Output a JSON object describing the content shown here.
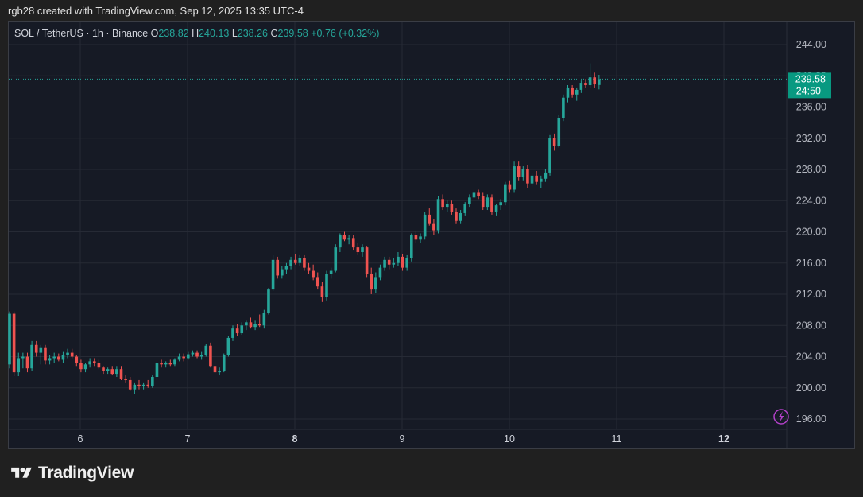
{
  "header": {
    "attribution": "rgb28 created with TradingView.com, Sep 12, 2025 13:35 UTC-4"
  },
  "legend": {
    "symbol": "SOL / TetherUS · 1h · Binance",
    "o_label": "O",
    "o_value": "238.82",
    "h_label": "H",
    "h_value": "240.13",
    "l_label": "L",
    "l_value": "238.26",
    "c_label": "C",
    "c_value": "239.58",
    "change": "+0.76 (+0.32%)"
  },
  "price_tag": {
    "price": "239.58",
    "countdown": "24:50"
  },
  "footer": {
    "logo_text": "TradingView"
  },
  "colors": {
    "up": "#26a69a",
    "down": "#ef5350",
    "background": "#161a25",
    "grid": "#262a35",
    "tag": "#089981",
    "accent": "#b341c9"
  },
  "chart_data": {
    "type": "candlestick",
    "title": "SOL / TetherUS · 1h · Binance",
    "ylim": [
      192.5,
      247.5
    ],
    "y_ticks": [
      "244.00",
      "240.00",
      "236.00",
      "232.00",
      "228.00",
      "224.00",
      "220.00",
      "216.00",
      "212.00",
      "208.00",
      "204.00",
      "200.00",
      "196.00"
    ],
    "y_tick_values": [
      244,
      240,
      236,
      232,
      228,
      224,
      220,
      216,
      212,
      208,
      204,
      200,
      196
    ],
    "x_ticks": [
      "6",
      "7",
      "8",
      "9",
      "10",
      "11",
      "12"
    ],
    "x_ticks_bold": [
      "8",
      "12"
    ],
    "grid": true,
    "last_price": 239.58,
    "candles": [
      [
        203.0,
        209.8,
        202.5,
        209.5
      ],
      [
        209.5,
        209.8,
        201.5,
        202.0
      ],
      [
        202.0,
        204.5,
        201.5,
        203.8
      ],
      [
        203.8,
        204.5,
        202.5,
        204.0
      ],
      [
        204.0,
        204.5,
        202.0,
        202.5
      ],
      [
        202.5,
        206.0,
        202.2,
        205.5
      ],
      [
        205.5,
        206.0,
        204.0,
        204.5
      ],
      [
        204.5,
        205.5,
        203.0,
        205.2
      ],
      [
        205.2,
        205.5,
        203.0,
        203.5
      ],
      [
        203.5,
        204.2,
        203.0,
        203.8
      ],
      [
        203.8,
        204.5,
        203.2,
        204.0
      ],
      [
        204.0,
        204.4,
        203.4,
        203.6
      ],
      [
        203.6,
        204.6,
        203.2,
        204.2
      ],
      [
        204.2,
        205.0,
        203.8,
        204.5
      ],
      [
        204.5,
        205.0,
        203.8,
        204.0
      ],
      [
        204.0,
        204.2,
        202.8,
        203.2
      ],
      [
        203.2,
        203.6,
        202.0,
        202.4
      ],
      [
        202.4,
        203.2,
        202.0,
        203.0
      ],
      [
        203.0,
        203.8,
        202.6,
        203.4
      ],
      [
        203.4,
        203.8,
        202.8,
        203.2
      ],
      [
        203.2,
        203.6,
        202.4,
        202.6
      ],
      [
        202.6,
        202.8,
        201.8,
        202.2
      ],
      [
        202.2,
        202.6,
        201.8,
        202.4
      ],
      [
        202.4,
        202.8,
        201.6,
        201.8
      ],
      [
        201.8,
        202.8,
        201.4,
        202.4
      ],
      [
        202.4,
        202.8,
        201.0,
        201.2
      ],
      [
        201.2,
        201.6,
        200.6,
        201.0
      ],
      [
        201.0,
        201.4,
        199.6,
        199.8
      ],
      [
        199.8,
        200.6,
        199.2,
        200.4
      ],
      [
        200.4,
        201.0,
        199.8,
        200.2
      ],
      [
        200.2,
        200.6,
        199.8,
        200.4
      ],
      [
        200.4,
        201.0,
        200.0,
        200.2
      ],
      [
        200.2,
        201.6,
        200.0,
        201.4
      ],
      [
        201.4,
        203.4,
        201.0,
        203.2
      ],
      [
        203.2,
        203.6,
        202.6,
        203.0
      ],
      [
        203.0,
        203.4,
        202.6,
        203.2
      ],
      [
        203.2,
        203.6,
        202.8,
        203.0
      ],
      [
        203.0,
        203.8,
        202.8,
        203.6
      ],
      [
        203.6,
        204.4,
        203.4,
        204.0
      ],
      [
        204.0,
        204.4,
        203.4,
        203.8
      ],
      [
        203.8,
        204.6,
        203.6,
        204.3
      ],
      [
        204.3,
        204.8,
        204.0,
        204.5
      ],
      [
        204.5,
        204.8,
        203.8,
        204.0
      ],
      [
        204.0,
        204.6,
        203.6,
        204.2
      ],
      [
        204.2,
        205.6,
        204.0,
        205.4
      ],
      [
        205.4,
        205.8,
        202.6,
        202.8
      ],
      [
        202.8,
        203.4,
        201.8,
        202.0
      ],
      [
        202.0,
        202.6,
        201.6,
        202.2
      ],
      [
        202.2,
        204.4,
        202.0,
        204.2
      ],
      [
        204.2,
        206.6,
        204.0,
        206.4
      ],
      [
        206.4,
        208.0,
        206.0,
        207.6
      ],
      [
        207.6,
        208.2,
        206.6,
        207.0
      ],
      [
        207.0,
        208.4,
        206.8,
        208.0
      ],
      [
        208.0,
        208.6,
        207.4,
        208.4
      ],
      [
        208.4,
        209.0,
        207.6,
        207.8
      ],
      [
        207.8,
        208.6,
        207.4,
        208.2
      ],
      [
        208.2,
        209.4,
        207.8,
        208.0
      ],
      [
        208.0,
        210.0,
        207.6,
        209.6
      ],
      [
        209.6,
        212.8,
        209.4,
        212.6
      ],
      [
        212.6,
        217.0,
        212.4,
        216.4
      ],
      [
        216.4,
        216.8,
        214.0,
        214.4
      ],
      [
        214.4,
        215.6,
        214.0,
        215.2
      ],
      [
        215.2,
        216.0,
        214.6,
        215.6
      ],
      [
        215.6,
        216.8,
        215.2,
        216.4
      ],
      [
        216.4,
        217.2,
        215.8,
        216.0
      ],
      [
        216.0,
        217.0,
        215.6,
        216.6
      ],
      [
        216.6,
        217.0,
        215.0,
        215.4
      ],
      [
        215.4,
        216.0,
        214.6,
        215.0
      ],
      [
        215.0,
        215.8,
        213.8,
        214.2
      ],
      [
        214.2,
        214.8,
        212.6,
        213.0
      ],
      [
        213.0,
        213.6,
        211.0,
        211.6
      ],
      [
        211.6,
        215.0,
        211.2,
        214.6
      ],
      [
        214.6,
        215.4,
        214.0,
        215.0
      ],
      [
        215.0,
        218.4,
        214.8,
        218.0
      ],
      [
        218.0,
        219.8,
        217.4,
        219.6
      ],
      [
        219.6,
        220.0,
        218.8,
        219.0
      ],
      [
        219.0,
        219.6,
        218.4,
        219.2
      ],
      [
        219.2,
        219.6,
        217.6,
        218.0
      ],
      [
        218.0,
        218.6,
        217.0,
        217.4
      ],
      [
        217.4,
        218.4,
        216.8,
        218.0
      ],
      [
        218.0,
        218.2,
        214.2,
        214.6
      ],
      [
        214.6,
        215.4,
        212.0,
        212.6
      ],
      [
        212.6,
        214.8,
        212.2,
        214.2
      ],
      [
        214.2,
        215.8,
        213.8,
        215.4
      ],
      [
        215.4,
        216.8,
        215.0,
        216.4
      ],
      [
        216.4,
        216.8,
        215.2,
        215.8
      ],
      [
        215.8,
        216.6,
        215.4,
        216.0
      ],
      [
        216.0,
        217.4,
        215.6,
        216.8
      ],
      [
        216.8,
        217.2,
        215.0,
        215.4
      ],
      [
        215.4,
        217.0,
        215.0,
        216.6
      ],
      [
        216.6,
        219.8,
        216.2,
        219.6
      ],
      [
        219.6,
        220.0,
        218.6,
        219.0
      ],
      [
        219.0,
        219.8,
        218.6,
        219.4
      ],
      [
        219.4,
        222.6,
        219.0,
        222.2
      ],
      [
        222.2,
        223.0,
        220.8,
        221.0
      ],
      [
        221.0,
        221.6,
        219.6,
        220.2
      ],
      [
        220.2,
        224.6,
        219.8,
        224.2
      ],
      [
        224.2,
        224.8,
        222.8,
        223.2
      ],
      [
        223.2,
        224.0,
        222.6,
        223.6
      ],
      [
        223.6,
        224.0,
        222.2,
        222.6
      ],
      [
        222.6,
        223.0,
        221.0,
        221.4
      ],
      [
        221.4,
        222.8,
        221.0,
        222.4
      ],
      [
        222.4,
        223.8,
        222.0,
        223.6
      ],
      [
        223.6,
        224.8,
        223.2,
        224.4
      ],
      [
        224.4,
        225.4,
        224.0,
        225.0
      ],
      [
        225.0,
        225.4,
        224.2,
        224.6
      ],
      [
        224.6,
        225.0,
        222.8,
        223.2
      ],
      [
        223.2,
        224.8,
        222.8,
        224.4
      ],
      [
        224.4,
        224.8,
        222.2,
        222.6
      ],
      [
        222.6,
        223.6,
        222.0,
        223.4
      ],
      [
        223.4,
        224.2,
        222.8,
        223.8
      ],
      [
        223.8,
        226.4,
        223.4,
        226.0
      ],
      [
        226.0,
        226.6,
        225.0,
        225.4
      ],
      [
        225.4,
        229.0,
        225.0,
        228.4
      ],
      [
        228.4,
        229.0,
        226.6,
        227.0
      ],
      [
        227.0,
        228.4,
        226.6,
        228.0
      ],
      [
        228.0,
        228.6,
        225.6,
        226.2
      ],
      [
        226.2,
        227.6,
        225.8,
        227.2
      ],
      [
        227.2,
        227.8,
        226.0,
        226.4
      ],
      [
        226.4,
        227.2,
        225.6,
        226.8
      ],
      [
        226.8,
        228.0,
        226.4,
        227.6
      ],
      [
        227.6,
        232.4,
        227.2,
        232.0
      ],
      [
        232.0,
        232.6,
        230.4,
        231.0
      ],
      [
        231.0,
        235.0,
        230.8,
        234.6
      ],
      [
        234.6,
        237.6,
        234.2,
        237.2
      ],
      [
        237.2,
        238.8,
        236.6,
        238.4
      ],
      [
        238.4,
        238.8,
        237.2,
        237.6
      ],
      [
        237.6,
        238.4,
        236.8,
        238.2
      ],
      [
        238.2,
        239.4,
        237.8,
        239.0
      ],
      [
        239.0,
        239.6,
        238.4,
        238.8
      ],
      [
        238.8,
        241.6,
        238.4,
        239.8
      ],
      [
        239.8,
        240.4,
        238.4,
        238.9
      ],
      [
        238.82,
        240.13,
        238.26,
        239.58
      ]
    ]
  }
}
